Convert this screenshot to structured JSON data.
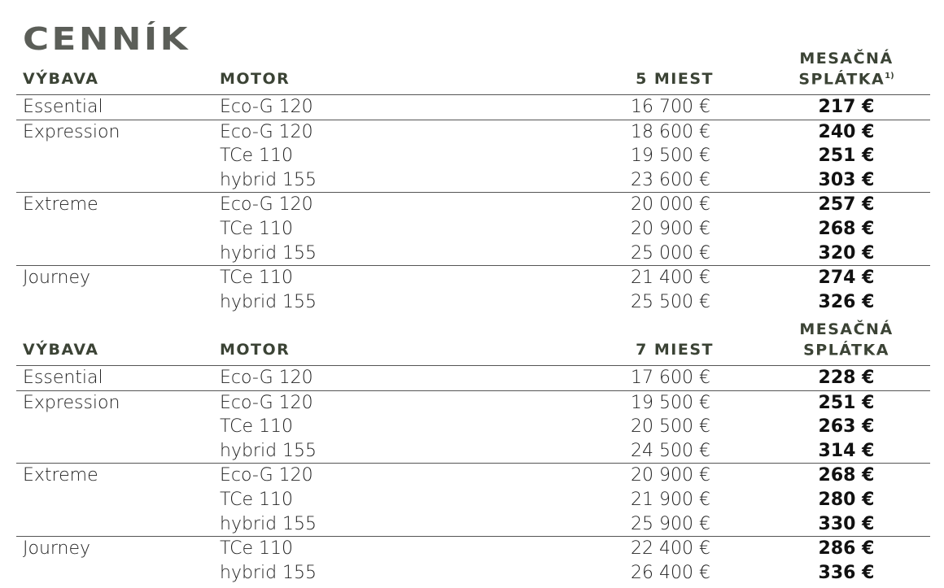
{
  "title": "CENNÍK",
  "sections": [
    {
      "headers": {
        "trim": "VÝBAVA",
        "engine": "MOTOR",
        "price": "5 MIEST",
        "payment_line1": "MESAČNÁ",
        "payment_line2": "SPLÁTKA",
        "payment_footnote": "1)"
      },
      "groups": [
        {
          "trim": "Essential",
          "rows": [
            {
              "engine": "Eco-G 120",
              "price": "16 700 €",
              "payment": "217 €"
            }
          ]
        },
        {
          "trim": "Expression",
          "rows": [
            {
              "engine": "Eco-G 120",
              "price": "18 600 €",
              "payment": "240 €"
            },
            {
              "engine": "TCe 110",
              "price": "19 500 €",
              "payment": "251 €"
            },
            {
              "engine": "hybrid 155",
              "price": "23 600 €",
              "payment": "303 €"
            }
          ]
        },
        {
          "trim": "Extreme",
          "rows": [
            {
              "engine": "Eco-G 120",
              "price": "20 000 €",
              "payment": "257 €"
            },
            {
              "engine": "TCe 110",
              "price": "20 900 €",
              "payment": "268 €"
            },
            {
              "engine": "hybrid 155",
              "price": "25 000 €",
              "payment": "320 €"
            }
          ]
        },
        {
          "trim": "Journey",
          "rows": [
            {
              "engine": "TCe 110",
              "price": "21 400 €",
              "payment": "274 €"
            },
            {
              "engine": "hybrid 155",
              "price": "25 500 €",
              "payment": "326 €"
            }
          ]
        }
      ]
    },
    {
      "headers": {
        "trim": "VÝBAVA",
        "engine": "MOTOR",
        "price": "7 MIEST",
        "payment_line1": "MESAČNÁ",
        "payment_line2": "SPLÁTKA",
        "payment_footnote": ""
      },
      "groups": [
        {
          "trim": "Essential",
          "rows": [
            {
              "engine": "Eco-G 120",
              "price": "17 600 €",
              "payment": "228 €"
            }
          ]
        },
        {
          "trim": "Expression",
          "rows": [
            {
              "engine": "Eco-G 120",
              "price": "19 500 €",
              "payment": "251 €"
            },
            {
              "engine": "TCe 110",
              "price": "20 500 €",
              "payment": "263 €"
            },
            {
              "engine": "hybrid 155",
              "price": "24 500 €",
              "payment": "314 €"
            }
          ]
        },
        {
          "trim": "Extreme",
          "rows": [
            {
              "engine": "Eco-G 120",
              "price": "20 900 €",
              "payment": "268 €"
            },
            {
              "engine": "TCe 110",
              "price": "21 900 €",
              "payment": "280 €"
            },
            {
              "engine": "hybrid 155",
              "price": "25 900 €",
              "payment": "330 €"
            }
          ]
        },
        {
          "trim": "Journey",
          "rows": [
            {
              "engine": "TCe 110",
              "price": "22 400 €",
              "payment": "286 €"
            },
            {
              "engine": "hybrid 155",
              "price": "26 400 €",
              "payment": "336 €"
            }
          ]
        }
      ]
    }
  ]
}
